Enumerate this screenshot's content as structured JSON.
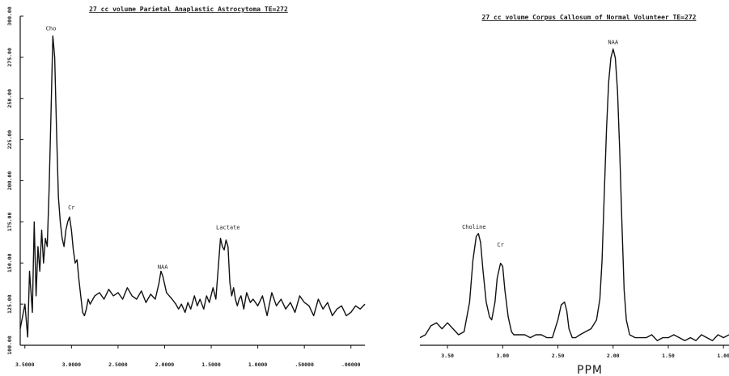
{
  "chart_data": [
    {
      "type": "line",
      "title": "27 cc volume Parietal Anaplastic Astrocytoma TE=272",
      "xlabel": "",
      "ylabel": "",
      "x_reversed": true,
      "xlim": [
        3.55,
        -0.15
      ],
      "ylim": [
        100,
        300
      ],
      "x_ticks": [
        3.5,
        3.0,
        2.5,
        2.0,
        1.5,
        1.0,
        0.5,
        0.0
      ],
      "x_tick_labels": [
        "3.5000",
        "3.0000",
        "2.5000",
        "2.0000",
        "1.5000",
        "1.0000",
        ".50000",
        ".00000"
      ],
      "y_ticks": [
        100,
        125,
        150,
        175,
        200,
        225,
        250,
        275,
        300
      ],
      "y_tick_labels": [
        "100.00",
        "125.00",
        "150.00",
        "175.00",
        "200.00",
        "225.00",
        "250.00",
        "275.00",
        "300.00"
      ],
      "annotations": [
        {
          "text": "Cho",
          "x": 3.22,
          "y": 290
        },
        {
          "text": "Cr",
          "x": 3.0,
          "y": 181
        },
        {
          "text": "NAA",
          "x": 2.02,
          "y": 145
        },
        {
          "text": "Lactate",
          "x": 1.32,
          "y": 169
        }
      ],
      "series": [
        {
          "x": [
            3.55,
            3.5,
            3.47,
            3.45,
            3.42,
            3.4,
            3.38,
            3.36,
            3.34,
            3.32,
            3.3,
            3.28,
            3.26,
            3.24,
            3.22,
            3.2,
            3.18,
            3.16,
            3.14,
            3.12,
            3.1,
            3.08,
            3.06,
            3.04,
            3.02,
            3.0,
            2.98,
            2.96,
            2.94,
            2.92,
            2.9,
            2.88,
            2.86,
            2.84,
            2.82,
            2.8,
            2.75,
            2.7,
            2.65,
            2.6,
            2.55,
            2.5,
            2.45,
            2.4,
            2.35,
            2.3,
            2.25,
            2.2,
            2.15,
            2.1,
            2.06,
            2.04,
            2.02,
            2.0,
            1.98,
            1.95,
            1.92,
            1.88,
            1.85,
            1.82,
            1.78,
            1.75,
            1.72,
            1.68,
            1.65,
            1.62,
            1.58,
            1.55,
            1.52,
            1.48,
            1.45,
            1.42,
            1.4,
            1.38,
            1.36,
            1.34,
            1.32,
            1.3,
            1.28,
            1.26,
            1.24,
            1.22,
            1.2,
            1.18,
            1.15,
            1.12,
            1.08,
            1.05,
            1.0,
            0.95,
            0.9,
            0.85,
            0.8,
            0.75,
            0.7,
            0.65,
            0.6,
            0.55,
            0.5,
            0.45,
            0.4,
            0.35,
            0.3,
            0.25,
            0.2,
            0.15,
            0.1,
            0.05,
            0.0,
            -0.05,
            -0.1,
            -0.15
          ],
          "y": [
            110,
            125,
            105,
            145,
            120,
            175,
            130,
            160,
            145,
            170,
            150,
            165,
            160,
            195,
            240,
            288,
            275,
            230,
            190,
            175,
            165,
            160,
            170,
            175,
            178,
            170,
            158,
            150,
            152,
            140,
            130,
            120,
            118,
            122,
            128,
            125,
            130,
            132,
            128,
            134,
            130,
            132,
            128,
            135,
            130,
            128,
            133,
            126,
            131,
            128,
            138,
            145,
            142,
            137,
            132,
            130,
            128,
            125,
            122,
            125,
            120,
            126,
            122,
            130,
            124,
            128,
            122,
            130,
            126,
            135,
            128,
            150,
            165,
            160,
            158,
            164,
            160,
            138,
            130,
            135,
            128,
            124,
            128,
            130,
            122,
            132,
            126,
            128,
            124,
            130,
            118,
            132,
            124,
            128,
            122,
            126,
            120,
            130,
            126,
            124,
            118,
            128,
            122,
            126,
            118,
            122,
            124,
            118,
            120,
            124,
            122,
            125
          ]
        }
      ]
    },
    {
      "type": "line",
      "title": "27 cc volume Corpus Callosum of Normal Volunteer TE=272",
      "xlabel": "PPM",
      "ylabel": "",
      "x_reversed": true,
      "xlim": [
        3.75,
        0.95
      ],
      "ylim": [
        0,
        100
      ],
      "x_ticks": [
        3.5,
        3.0,
        2.5,
        2.0,
        1.5,
        1.0
      ],
      "x_tick_labels": [
        "3.50",
        "3.00",
        "2.50",
        "2.00",
        "1.50",
        "1.00"
      ],
      "annotations": [
        {
          "text": "Choline",
          "x": 3.26,
          "y": 37
        },
        {
          "text": "Cr",
          "x": 3.02,
          "y": 31
        },
        {
          "text": "NAA",
          "x": 2.0,
          "y": 99
        }
      ],
      "series": [
        {
          "x": [
            3.75,
            3.7,
            3.65,
            3.6,
            3.55,
            3.5,
            3.45,
            3.4,
            3.35,
            3.3,
            3.27,
            3.24,
            3.22,
            3.2,
            3.18,
            3.15,
            3.12,
            3.1,
            3.07,
            3.05,
            3.02,
            3.0,
            2.98,
            2.95,
            2.92,
            2.9,
            2.85,
            2.8,
            2.75,
            2.7,
            2.65,
            2.6,
            2.55,
            2.5,
            2.47,
            2.44,
            2.42,
            2.4,
            2.37,
            2.34,
            2.3,
            2.25,
            2.2,
            2.15,
            2.12,
            2.1,
            2.08,
            2.06,
            2.04,
            2.02,
            2.0,
            1.98,
            1.96,
            1.94,
            1.92,
            1.9,
            1.88,
            1.85,
            1.8,
            1.75,
            1.7,
            1.65,
            1.6,
            1.55,
            1.5,
            1.45,
            1.4,
            1.35,
            1.3,
            1.25,
            1.2,
            1.15,
            1.1,
            1.05,
            1.0,
            0.95
          ],
          "y": [
            2,
            3,
            6,
            7,
            5,
            7,
            5,
            3,
            4,
            14,
            28,
            36,
            37,
            34,
            25,
            14,
            9,
            8,
            14,
            22,
            27,
            26,
            18,
            9,
            4,
            3,
            3,
            3,
            2,
            3,
            3,
            2,
            2,
            8,
            13,
            14,
            11,
            5,
            2,
            2,
            3,
            4,
            5,
            8,
            15,
            28,
            50,
            72,
            88,
            96,
            99,
            96,
            85,
            65,
            40,
            18,
            8,
            3,
            2,
            2,
            2,
            3,
            1,
            2,
            2,
            3,
            2,
            1,
            2,
            1,
            3,
            2,
            1,
            3,
            2,
            3
          ]
        }
      ]
    }
  ]
}
